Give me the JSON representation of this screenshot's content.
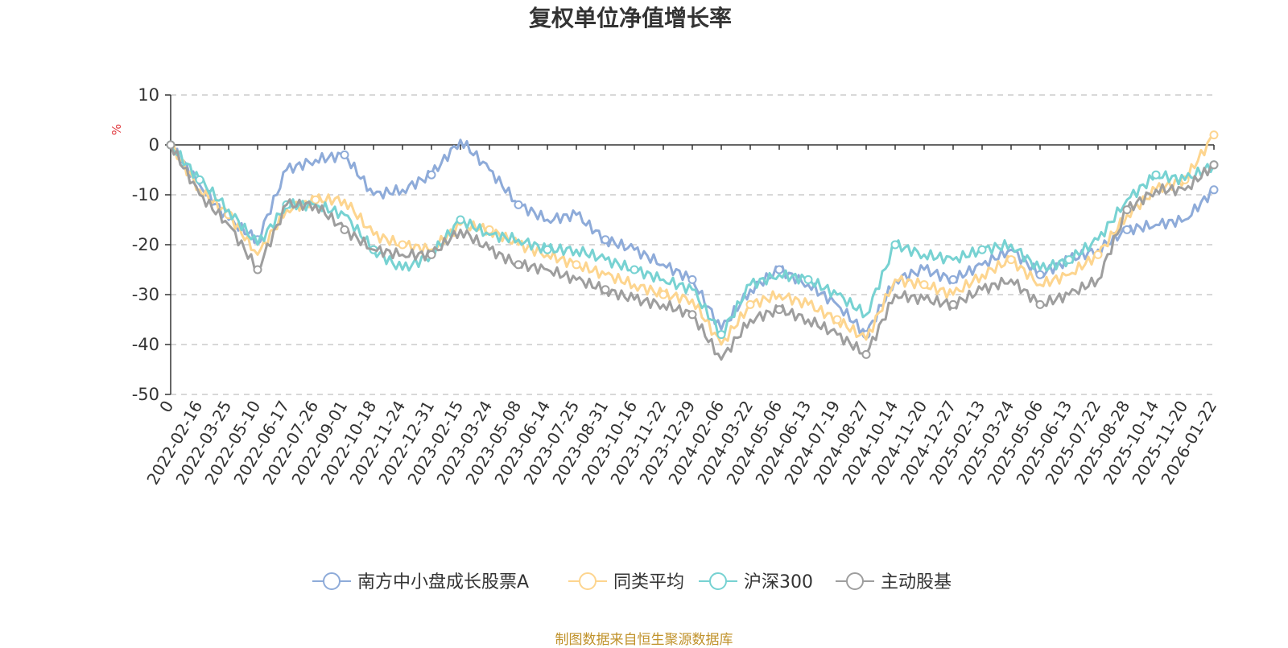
{
  "chart_data": {
    "type": "line",
    "title": "复权单位净值增长率",
    "ylabel": "%",
    "ylim": [
      -50,
      10
    ],
    "yticks": [
      "10",
      "0",
      "-10",
      "-20",
      "-30",
      "-40",
      "-50"
    ],
    "ytick_values": [
      10,
      0,
      -10,
      -20,
      -30,
      -40,
      -50
    ],
    "categories": [
      "0",
      "2022-02-16",
      "2022-03-25",
      "2022-05-10",
      "2022-06-17",
      "2022-07-26",
      "2022-09-01",
      "2022-10-18",
      "2022-11-24",
      "2022-12-31",
      "2023-02-15",
      "2023-03-24",
      "2023-05-08",
      "2023-06-14",
      "2023-07-25",
      "2023-08-31",
      "2023-10-16",
      "2023-11-22",
      "2023-12-29",
      "2024-02-06",
      "2024-03-22",
      "2024-05-06",
      "2024-06-13",
      "2024-07-19",
      "2024-08-27",
      "2024-10-14",
      "2024-11-20",
      "2024-12-27",
      "2025-02-13",
      "2025-03-24",
      "2025-05-06",
      "2025-06-13",
      "2025-07-22",
      "2025-08-28",
      "2025-10-14",
      "2025-11-20",
      "2026-01-22"
    ],
    "grid": true,
    "legend_position": "bottom",
    "series": [
      {
        "name": "南方中小盘成长股票A",
        "color": "#8eabd9",
        "values": [
          0,
          -8,
          -15,
          -19,
          -5,
          -3,
          -2,
          -10,
          -9,
          -6,
          1,
          -5,
          -12,
          -15,
          -14,
          -19,
          -21,
          -24,
          -27,
          -37,
          -29,
          -25,
          -28,
          -32,
          -38,
          -27,
          -25,
          -27,
          -24,
          -21,
          -26,
          -23,
          -21,
          -17,
          -16,
          -15,
          -9
        ]
      },
      {
        "name": "同类平均",
        "color": "#fdd58f",
        "values": [
          0,
          -9,
          -14,
          -22,
          -13,
          -11,
          -11,
          -18,
          -20,
          -21,
          -16,
          -17,
          -20,
          -22,
          -24,
          -26,
          -28,
          -30,
          -31,
          -40,
          -32,
          -30,
          -32,
          -35,
          -39,
          -27,
          -28,
          -30,
          -26,
          -23,
          -28,
          -26,
          -22,
          -14,
          -9,
          -7,
          2
        ]
      },
      {
        "name": "沪深300",
        "color": "#77d2d2",
        "values": [
          0,
          -7,
          -13,
          -20,
          -12,
          -12,
          -14,
          -21,
          -25,
          -22,
          -15,
          -18,
          -19,
          -21,
          -21,
          -23,
          -25,
          -27,
          -29,
          -38,
          -28,
          -26,
          -27,
          -30,
          -34,
          -20,
          -22,
          -23,
          -21,
          -20,
          -25,
          -23,
          -19,
          -11,
          -6,
          -7,
          -4
        ]
      },
      {
        "name": "主动股基",
        "color": "#9e9e9e",
        "values": [
          0,
          -10,
          -16,
          -25,
          -12,
          -12,
          -17,
          -21,
          -22,
          -22,
          -17,
          -21,
          -24,
          -25,
          -27,
          -29,
          -31,
          -32,
          -34,
          -43,
          -35,
          -33,
          -35,
          -38,
          -42,
          -30,
          -31,
          -32,
          -29,
          -27,
          -32,
          -30,
          -27,
          -13,
          -9,
          -9,
          -4
        ]
      }
    ]
  },
  "source": "制图数据来自恒生聚源数据库"
}
